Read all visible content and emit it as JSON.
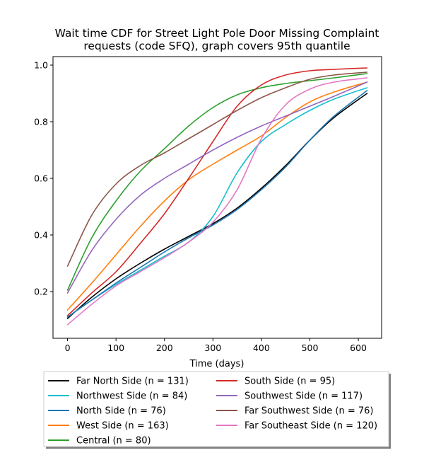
{
  "chart_data": {
    "type": "line",
    "title_line1": "Wait time CDF for Street Light Pole Door Missing Complaint",
    "title_line2": "requests (code SFQ), graph covers 95th quantile",
    "xlabel": "Time (days)",
    "ylabel": "",
    "xlim": [
      -30,
      648
    ],
    "ylim": [
      0.035,
      1.03
    ],
    "xticks": [
      0,
      100,
      200,
      300,
      400,
      500,
      600
    ],
    "yticks": [
      0.2,
      0.4,
      0.6,
      0.8,
      1.0
    ],
    "xtick_labels": [
      "0",
      "100",
      "200",
      "300",
      "400",
      "500",
      "600"
    ],
    "ytick_labels": [
      "0.2",
      "0.4",
      "0.6",
      "0.8",
      "1.0"
    ],
    "grid": false,
    "legend_placement": "below plot, two columns",
    "x": [
      0,
      50,
      100,
      150,
      200,
      250,
      300,
      350,
      400,
      450,
      500,
      550,
      618
    ],
    "series": [
      {
        "name": "Far North Side (n = 131)",
        "color": "#000000",
        "values": [
          0.105,
          0.18,
          0.245,
          0.3,
          0.35,
          0.395,
          0.44,
          0.495,
          0.565,
          0.645,
          0.735,
          0.815,
          0.9
        ]
      },
      {
        "name": "Northwest Side (n = 84)",
        "color": "#17becf",
        "values": [
          0.11,
          0.17,
          0.225,
          0.275,
          0.325,
          0.375,
          0.465,
          0.62,
          0.73,
          0.79,
          0.84,
          0.88,
          0.92
        ]
      },
      {
        "name": "North Side (n = 76)",
        "color": "#1f77b4",
        "values": [
          0.11,
          0.17,
          0.23,
          0.285,
          0.34,
          0.39,
          0.435,
          0.49,
          0.56,
          0.64,
          0.735,
          0.82,
          0.91
        ]
      },
      {
        "name": "West Side (n = 163)",
        "color": "#ff7f0e",
        "values": [
          0.135,
          0.23,
          0.33,
          0.43,
          0.52,
          0.595,
          0.65,
          0.7,
          0.75,
          0.815,
          0.87,
          0.905,
          0.94
        ]
      },
      {
        "name": "Central (n = 80)",
        "color": "#2ca02c",
        "values": [
          0.205,
          0.39,
          0.52,
          0.625,
          0.705,
          0.785,
          0.85,
          0.895,
          0.92,
          0.935,
          0.945,
          0.955,
          0.97
        ]
      },
      {
        "name": "South Side (n = 95)",
        "color": "#d62728",
        "values": [
          0.115,
          0.195,
          0.27,
          0.37,
          0.475,
          0.6,
          0.73,
          0.855,
          0.93,
          0.965,
          0.98,
          0.985,
          0.99
        ]
      },
      {
        "name": "Southwest Side (n = 117)",
        "color": "#9467bd",
        "values": [
          0.195,
          0.345,
          0.455,
          0.54,
          0.6,
          0.65,
          0.7,
          0.745,
          0.785,
          0.82,
          0.855,
          0.89,
          0.94
        ]
      },
      {
        "name": "Far Southwest Side (n = 76)",
        "color": "#8c564b",
        "values": [
          0.29,
          0.47,
          0.58,
          0.645,
          0.69,
          0.74,
          0.79,
          0.84,
          0.885,
          0.92,
          0.95,
          0.965,
          0.975
        ]
      },
      {
        "name": "Far Southeast Side (n = 120)",
        "color": "#e377c2",
        "values": [
          0.083,
          0.155,
          0.22,
          0.27,
          0.32,
          0.375,
          0.445,
          0.56,
          0.74,
          0.86,
          0.915,
          0.94,
          0.955
        ]
      }
    ]
  }
}
